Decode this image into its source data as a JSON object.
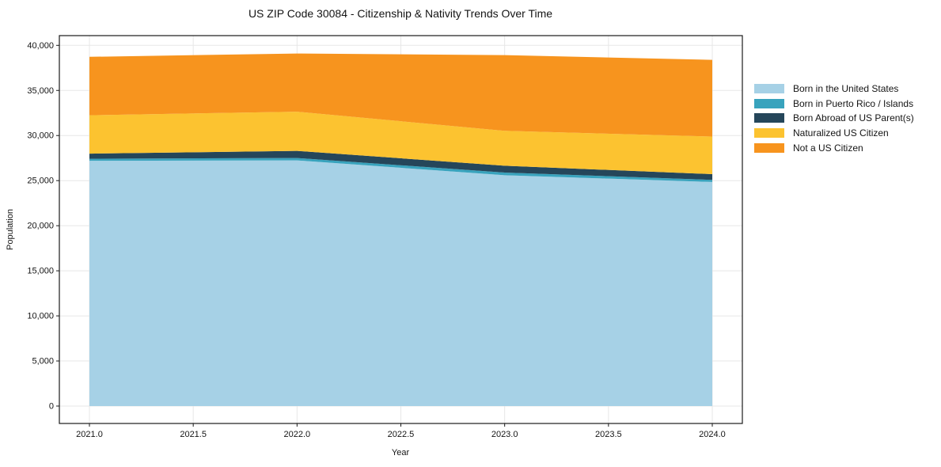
{
  "figure": {
    "title": "US ZIP Code 30084 - Citizenship & Nativity Trends Over Time",
    "xlabel": "Year",
    "ylabel": "Population"
  },
  "chart_data": {
    "type": "area",
    "stacked": true,
    "title": "US ZIP Code 30084 - Citizenship & Nativity Trends Over Time",
    "xlabel": "Year",
    "ylabel": "Population",
    "x": [
      2021,
      2022,
      2023,
      2024
    ],
    "series": [
      {
        "name": "Born in the United States",
        "color": "#a6d1e6",
        "values": [
          27200,
          27250,
          25600,
          24850
        ]
      },
      {
        "name": "Born in Puerto Rico / Islands",
        "color": "#38a3bd",
        "values": [
          220,
          260,
          290,
          240
        ]
      },
      {
        "name": "Born Abroad of US Parent(s)",
        "color": "#25465a",
        "values": [
          570,
          790,
          760,
          630
        ]
      },
      {
        "name": "Naturalized US Citizen",
        "color": "#fcc330",
        "values": [
          4260,
          4340,
          3870,
          4170
        ]
      },
      {
        "name": "Not a US Citizen",
        "color": "#f7941e",
        "values": [
          6480,
          6460,
          8400,
          8500
        ]
      }
    ],
    "totals": [
      38730,
      39100,
      38920,
      38390
    ],
    "xticks": [
      2021.0,
      2021.5,
      2022.0,
      2022.5,
      2023.0,
      2023.5,
      2024.0
    ],
    "xtick_labels": [
      "2021.0",
      "2021.5",
      "2022.0",
      "2022.5",
      "2023.0",
      "2023.5",
      "2024.0"
    ],
    "yticks": [
      0,
      5000,
      10000,
      15000,
      20000,
      25000,
      30000,
      35000,
      40000
    ],
    "ytick_labels": [
      "0",
      "5,000",
      "10,000",
      "15,000",
      "20,000",
      "25,000",
      "30,000",
      "35,000",
      "40,000"
    ],
    "xlim": [
      2020.855,
      2024.145
    ],
    "ylim": [
      -1955,
      41055
    ],
    "grid": true,
    "grid_color": "#e7e7e7",
    "axis_color": "#1a1a1a",
    "legend_position": "right"
  }
}
